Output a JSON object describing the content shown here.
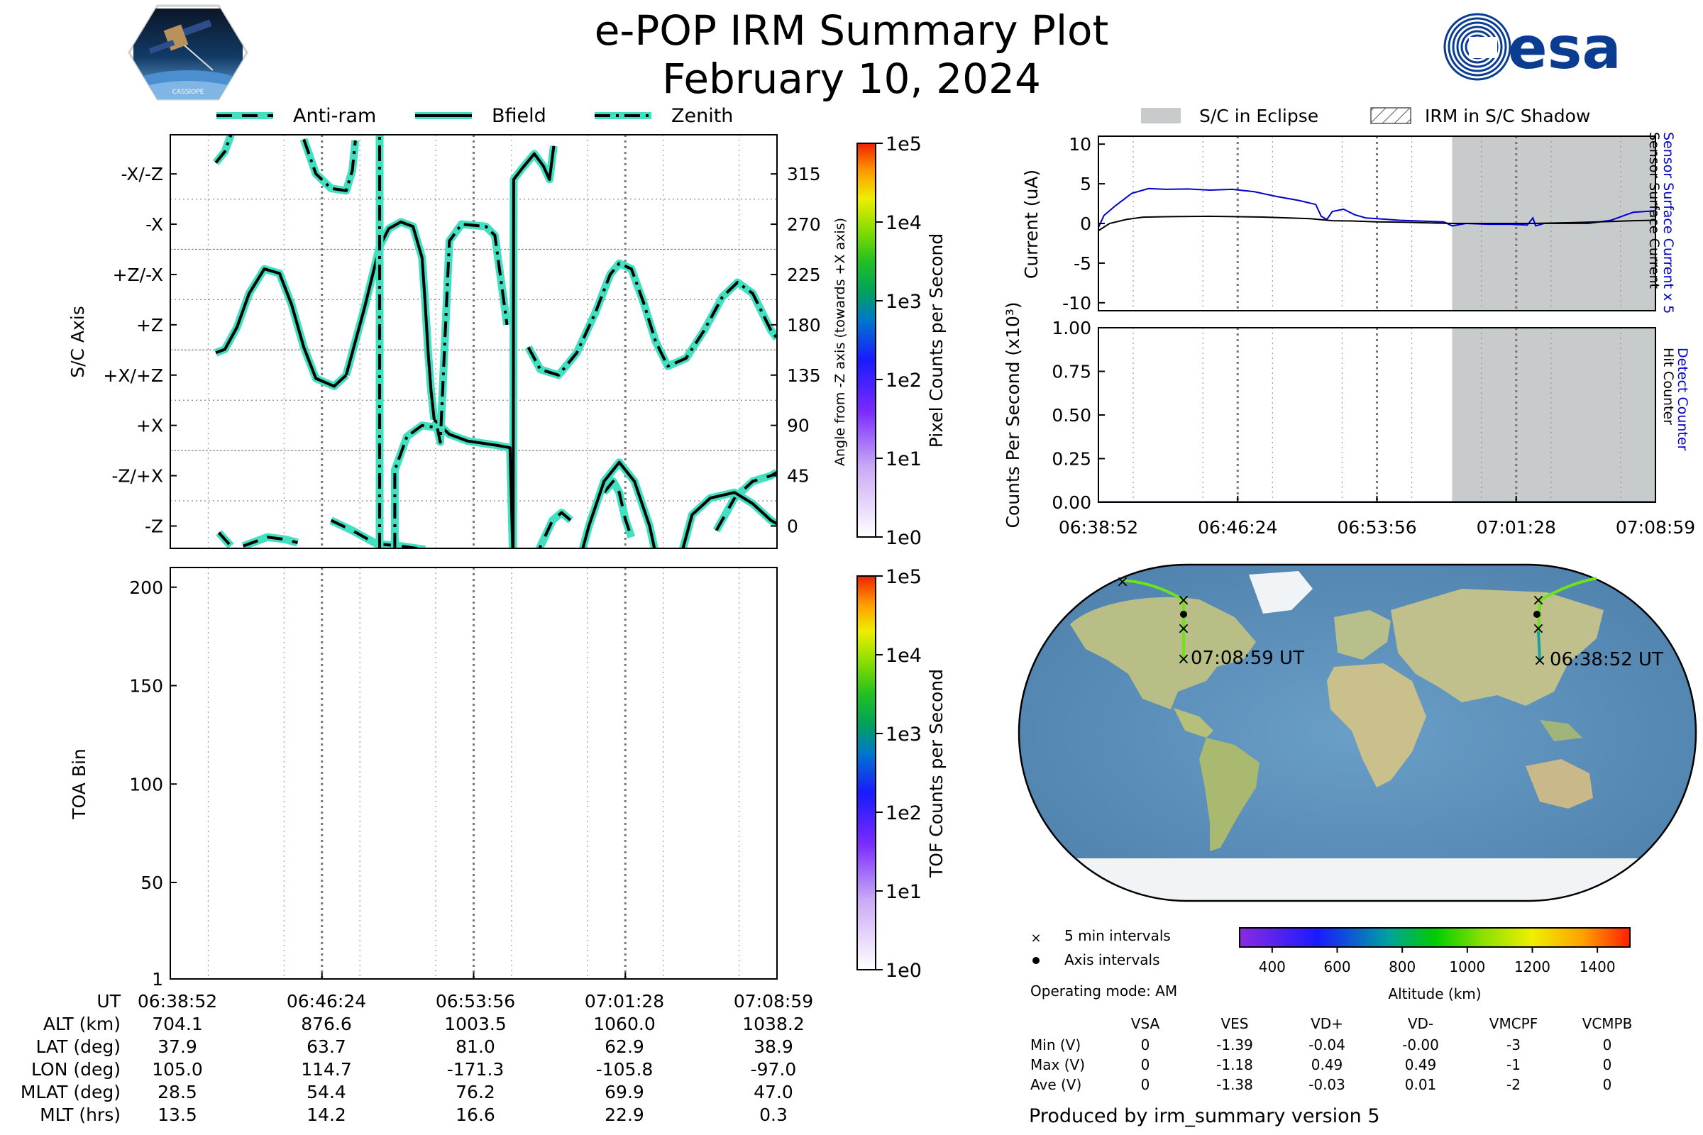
{
  "header": {
    "title": "e-POP IRM Summary Plot",
    "date": "February 10, 2024",
    "logo_left": "cassiope-logo",
    "logo_left_text": "CASSIOPE",
    "logo_right": "esa-logo",
    "logo_right_text": "esa"
  },
  "colors": {
    "bfield": "#000000",
    "halo": "#40e0c0",
    "current_detector": "#0000cc",
    "current_sensor": "#000000",
    "eclipse": "#c8cbcb",
    "ocean": "#5f93bd",
    "land": "#bfc48f",
    "ice": "#f1f4f7"
  },
  "time_labels": [
    "06:38:52",
    "06:46:24",
    "06:53:56",
    "07:01:28",
    "07:08:59"
  ],
  "chart_data": [
    {
      "id": "attitude",
      "type": "line",
      "ylabel": "S/C Axis",
      "y2label": "Angle from -Z axis (towards +X axis)",
      "ytick_labels": [
        "-X/-Z",
        "-X",
        "+Z/-X",
        "+Z",
        "+X/+Z",
        "+X",
        "-Z/+X",
        "-Z"
      ],
      "y2tick_values": [
        315,
        270,
        225,
        180,
        135,
        90,
        45,
        0
      ],
      "ylim": [
        -20,
        350
      ],
      "legend": [
        "Anti-ram",
        "Bfield",
        "Zenith"
      ],
      "legend_placement": "top",
      "colorbar": {
        "label": "Pixel Counts per Second",
        "ticks": [
          "1e0",
          "1e1",
          "1e2",
          "1e3",
          "1e4",
          "1e5"
        ]
      },
      "series": [
        {
          "name": "Anti-ram",
          "style": "dashed",
          "segments": [
            [
              [
                0.08,
                -6
              ],
              [
                0.1,
                -18
              ]
            ],
            [
              [
                0.12,
                -18
              ],
              [
                0.16,
                -10
              ],
              [
                0.19,
                -12
              ],
              [
                0.21,
                -15
              ]
            ],
            [
              [
                0.265,
                5
              ],
              [
                0.3,
                -4
              ],
              [
                0.34,
                -16
              ],
              [
                0.38,
                -18
              ],
              [
                0.42,
                -21
              ]
            ],
            [
              [
                0.6,
                -30
              ],
              [
                0.63,
                5
              ],
              [
                0.645,
                12
              ],
              [
                0.66,
                5
              ]
            ],
            [
              [
                0.715,
                30
              ],
              [
                0.73,
                40
              ],
              [
                0.74,
                30
              ],
              [
                0.75,
                6
              ],
              [
                0.76,
                -10
              ]
            ],
            [
              [
                0.9,
                -4
              ],
              [
                0.93,
                25
              ],
              [
                0.96,
                40
              ],
              [
                0.99,
                45
              ],
              [
                1.0,
                48
              ]
            ]
          ]
        },
        {
          "name": "Bfield",
          "style": "solid",
          "segments": [
            [
              [
                0.075,
                155
              ],
              [
                0.09,
                158
              ],
              [
                0.11,
                178
              ],
              [
                0.13,
                208
              ],
              [
                0.155,
                230
              ],
              [
                0.18,
                226
              ],
              [
                0.2,
                198
              ],
              [
                0.22,
                160
              ],
              [
                0.24,
                132
              ],
              [
                0.27,
                125
              ],
              [
                0.29,
                135
              ]
            ],
            [
              [
                0.29,
                135
              ],
              [
                0.32,
                195
              ],
              [
                0.345,
                250
              ],
              [
                0.36,
                266
              ],
              [
                0.38,
                272
              ],
              [
                0.4,
                268
              ],
              [
                0.415,
                240
              ],
              [
                0.42,
                200
              ],
              [
                0.425,
                155
              ],
              [
                0.43,
                120
              ],
              [
                0.435,
                95
              ]
            ],
            [
              [
                0.435,
                95
              ],
              [
                0.46,
                82
              ],
              [
                0.49,
                76
              ],
              [
                0.54,
                72
              ],
              [
                0.56,
                70
              ],
              [
                0.565,
                -35
              ],
              [
                0.566,
                310
              ],
              [
                0.58,
                320
              ],
              [
                0.6,
                333
              ],
              [
                0.615,
                322
              ],
              [
                0.625,
                310
              ],
              [
                0.632,
                340
              ]
            ],
            [
              [
                0.68,
                -20
              ],
              [
                0.69,
                0
              ],
              [
                0.715,
                40
              ],
              [
                0.74,
                57
              ],
              [
                0.765,
                40
              ],
              [
                0.79,
                0
              ],
              [
                0.8,
                -25
              ]
            ],
            [
              [
                0.84,
                -30
              ],
              [
                0.86,
                10
              ],
              [
                0.89,
                25
              ],
              [
                0.93,
                30
              ],
              [
                0.96,
                20
              ],
              [
                0.99,
                5
              ],
              [
                1.0,
                2
              ]
            ]
          ]
        },
        {
          "name": "Zenith",
          "style": "dashdot",
          "segments": [
            [
              [
                0.075,
                325
              ],
              [
                0.09,
                335
              ],
              [
                0.1,
                350
              ]
            ],
            [
              [
                0.22,
                346
              ],
              [
                0.24,
                315
              ],
              [
                0.265,
                302
              ],
              [
                0.29,
                300
              ],
              [
                0.3,
                318
              ],
              [
                0.305,
                345
              ]
            ],
            [
              [
                0.345,
                -20
              ],
              [
                0.345,
                300
              ],
              [
                0.345,
                350
              ]
            ],
            [
              [
                0.37,
                -20
              ],
              [
                0.37,
                50
              ],
              [
                0.39,
                80
              ],
              [
                0.415,
                90
              ],
              [
                0.44,
                88
              ],
              [
                0.445,
                75
              ],
              [
                0.46,
                255
              ],
              [
                0.48,
                270
              ],
              [
                0.52,
                268
              ],
              [
                0.535,
                260
              ],
              [
                0.545,
                220
              ],
              [
                0.555,
                180
              ]
            ],
            [
              [
                0.59,
                160
              ],
              [
                0.61,
                140
              ],
              [
                0.64,
                135
              ],
              [
                0.67,
                155
              ],
              [
                0.7,
                190
              ],
              [
                0.725,
                225
              ],
              [
                0.74,
                235
              ],
              [
                0.76,
                230
              ],
              [
                0.78,
                200
              ],
              [
                0.8,
                165
              ],
              [
                0.82,
                143
              ],
              [
                0.85,
                150
              ],
              [
                0.88,
                175
              ],
              [
                0.91,
                205
              ],
              [
                0.935,
                218
              ],
              [
                0.96,
                208
              ],
              [
                0.99,
                175
              ],
              [
                1.0,
                168
              ]
            ]
          ]
        }
      ]
    },
    {
      "id": "toa",
      "type": "heatmap",
      "ylabel": "TOA Bin",
      "yticks": [
        1,
        50,
        100,
        150,
        200
      ],
      "ylim": [
        1,
        210
      ],
      "colorbar": {
        "label": "TOF Counts per Second",
        "ticks": [
          "1e0",
          "1e1",
          "1e2",
          "1e3",
          "1e4",
          "1e5"
        ]
      },
      "values": []
    },
    {
      "id": "current",
      "type": "line",
      "ylabel": "Current (uA)",
      "y2label_blue": "Sensor Surface Current x 5",
      "y2label_black": "Sensor Surface Current",
      "yticks": [
        10,
        5,
        0,
        -5,
        -10
      ],
      "ylim": [
        -11,
        11
      ],
      "legend": [
        "S/C in Eclipse",
        "IRM in S/C Shadow"
      ],
      "legend_placement": "top",
      "eclipse_range": [
        0.635,
        1.0
      ],
      "series": [
        {
          "name": "Sensor Surface Current x 5",
          "color": "#0000cc",
          "points": [
            [
              0.0,
              -0.5
            ],
            [
              0.01,
              1.0
            ],
            [
              0.03,
              2.2
            ],
            [
              0.06,
              3.8
            ],
            [
              0.09,
              4.4
            ],
            [
              0.12,
              4.3
            ],
            [
              0.16,
              4.35
            ],
            [
              0.2,
              4.2
            ],
            [
              0.24,
              4.3
            ],
            [
              0.28,
              4.0
            ],
            [
              0.32,
              3.4
            ],
            [
              0.36,
              2.9
            ],
            [
              0.39,
              2.4
            ],
            [
              0.4,
              0.9
            ],
            [
              0.41,
              0.5
            ],
            [
              0.42,
              1.5
            ],
            [
              0.44,
              1.8
            ],
            [
              0.46,
              1.1
            ],
            [
              0.48,
              0.7
            ],
            [
              0.5,
              0.6
            ],
            [
              0.54,
              0.4
            ],
            [
              0.58,
              0.3
            ],
            [
              0.62,
              0.2
            ],
            [
              0.635,
              -0.3
            ],
            [
              0.66,
              0.0
            ],
            [
              0.7,
              -0.1
            ],
            [
              0.74,
              -0.1
            ],
            [
              0.77,
              -0.2
            ],
            [
              0.78,
              0.7
            ],
            [
              0.785,
              -0.3
            ],
            [
              0.8,
              0.0
            ],
            [
              0.85,
              0.0
            ],
            [
              0.88,
              0.0
            ],
            [
              0.92,
              0.4
            ],
            [
              0.96,
              1.4
            ],
            [
              1.0,
              1.6
            ]
          ]
        },
        {
          "name": "Sensor Surface Current",
          "color": "#000000",
          "points": [
            [
              0.0,
              -0.9
            ],
            [
              0.02,
              0.0
            ],
            [
              0.05,
              0.5
            ],
            [
              0.08,
              0.8
            ],
            [
              0.12,
              0.85
            ],
            [
              0.2,
              0.9
            ],
            [
              0.3,
              0.8
            ],
            [
              0.38,
              0.6
            ],
            [
              0.42,
              0.35
            ],
            [
              0.46,
              0.3
            ],
            [
              0.5,
              0.2
            ],
            [
              0.55,
              0.15
            ],
            [
              0.6,
              0.05
            ],
            [
              0.64,
              0.0
            ],
            [
              0.7,
              0.0
            ],
            [
              0.78,
              0.0
            ],
            [
              0.85,
              0.1
            ],
            [
              0.92,
              0.25
            ],
            [
              0.96,
              0.35
            ],
            [
              1.0,
              0.4
            ]
          ]
        }
      ]
    },
    {
      "id": "counts",
      "type": "line",
      "ylabel": "Counts Per Second (x10³)",
      "y2label_blue": "Detect Counter",
      "y2label_black": "Hit Counter",
      "yticks": [
        1.0,
        0.75,
        0.5,
        0.25,
        0.0
      ],
      "ytick_labels": [
        "1.00",
        "0.75",
        "0.50",
        "0.25",
        "0.00"
      ],
      "ylim": [
        0,
        1
      ],
      "eclipse_range": [
        0.635,
        1.0
      ],
      "series": [
        {
          "name": "Detect Counter",
          "color": "#0000cc",
          "points": [
            [
              0.0,
              0.0
            ],
            [
              1.0,
              0.0
            ]
          ]
        }
      ]
    }
  ],
  "map": {
    "start_label": "06:38:52 UT",
    "end_label": "07:08:59 UT",
    "legend": {
      "cross": "5 min intervals",
      "dot": "Axis intervals"
    },
    "colorbar": {
      "label": "Altitude (km)",
      "ticks": [
        400,
        600,
        800,
        1000,
        1200,
        1400
      ],
      "range": [
        300,
        1500
      ]
    },
    "operating_mode": "Operating mode: AM"
  },
  "orbit_table": {
    "row_labels": [
      "UT",
      "ALT (km)",
      "LAT (deg)",
      "LON (deg)",
      "MLAT (deg)",
      "MLT (hrs)"
    ],
    "columns": [
      [
        "06:38:52",
        "704.1",
        "37.9",
        "105.0",
        "28.5",
        "13.5"
      ],
      [
        "06:46:24",
        "876.6",
        "63.7",
        "114.7",
        "54.4",
        "14.2"
      ],
      [
        "06:53:56",
        "1003.5",
        "81.0",
        "-171.3",
        "76.2",
        "16.6"
      ],
      [
        "07:01:28",
        "1060.0",
        "62.9",
        "-105.8",
        "69.9",
        "22.9"
      ],
      [
        "07:08:59",
        "1038.2",
        "38.9",
        "-97.0",
        "47.0",
        "0.3"
      ]
    ]
  },
  "voltage_table": {
    "headers": [
      "VSA",
      "VES",
      "VD+",
      "VD-",
      "VMCPF",
      "VCMPB"
    ],
    "rows": [
      {
        "label": "Min (V)",
        "values": [
          "0",
          "-1.39",
          "-0.04",
          "-0.00",
          "-3",
          "0"
        ]
      },
      {
        "label": "Max (V)",
        "values": [
          "0",
          "-1.18",
          "0.49",
          "0.49",
          "-1",
          "0"
        ]
      },
      {
        "label": "Ave (V)",
        "values": [
          "0",
          "-1.38",
          "-0.03",
          "0.01",
          "-2",
          "0"
        ]
      }
    ]
  },
  "footer": "Produced by irm_summary version 5"
}
